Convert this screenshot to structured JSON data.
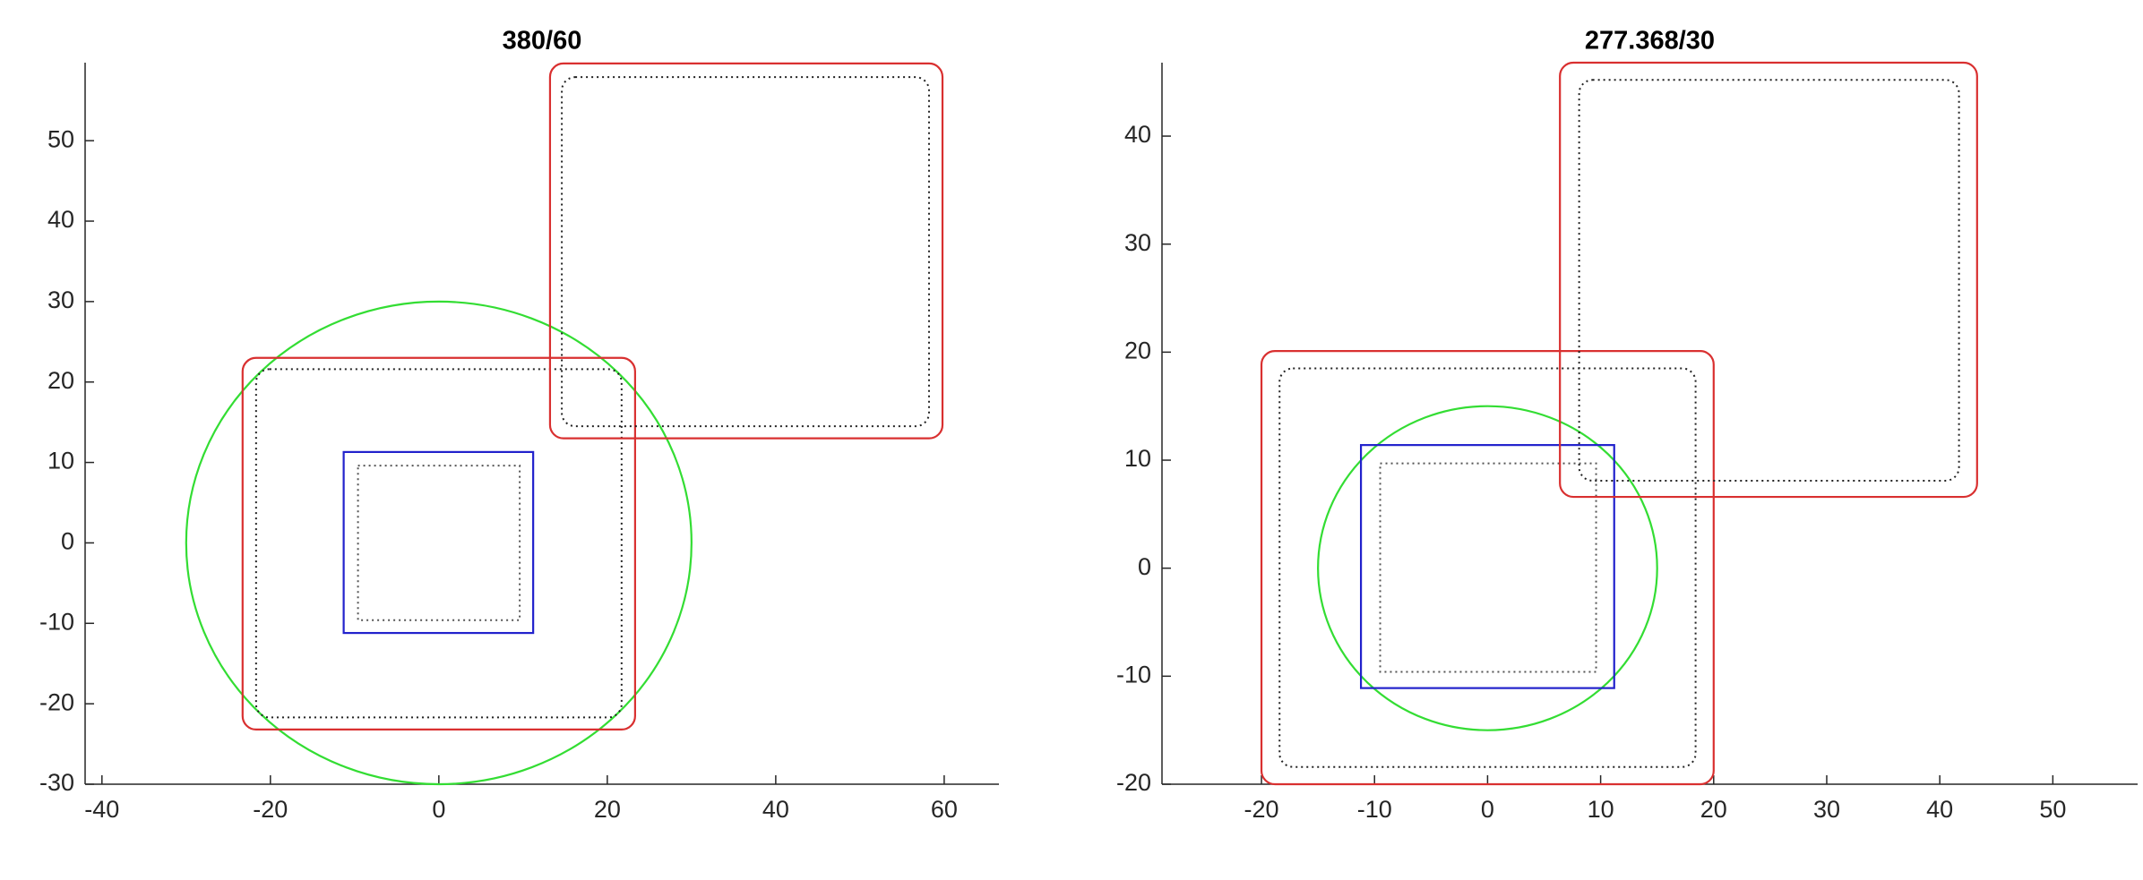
{
  "chart_data": [
    {
      "type": "shapes",
      "title": "380/60",
      "xlim": [
        -42,
        66.5
      ],
      "ylim": [
        -30,
        59.7
      ],
      "xticks": [
        -40,
        -20,
        0,
        20,
        40,
        60
      ],
      "yticks": [
        -30,
        -20,
        -10,
        0,
        10,
        20,
        30,
        40,
        50
      ],
      "shapes": [
        {
          "kind": "circle",
          "cx": 0,
          "cy": 0,
          "r": 30,
          "color": "#33dd33",
          "dash": "solid"
        },
        {
          "kind": "rect",
          "x": [
            -11.3,
            11.2
          ],
          "y": [
            -11.2,
            11.3
          ],
          "color": "#2222cc",
          "dash": "solid",
          "rounded": false
        },
        {
          "kind": "rect",
          "x": [
            -9.6,
            9.6
          ],
          "y": [
            -9.6,
            9.6
          ],
          "color": "#555555",
          "dash": "dotted",
          "rounded": false
        },
        {
          "kind": "rect",
          "x": [
            -23.3,
            23.3
          ],
          "y": [
            -23.2,
            23
          ],
          "color": "#d93030",
          "dash": "solid",
          "rounded": true
        },
        {
          "kind": "rect",
          "x": [
            -21.7,
            21.7
          ],
          "y": [
            -21.7,
            21.6
          ],
          "color": "#222222",
          "dash": "dotted",
          "rounded": true
        },
        {
          "kind": "rect",
          "x": [
            13.2,
            59.8
          ],
          "y": [
            13,
            59.6
          ],
          "color": "#d93030",
          "dash": "solid",
          "rounded": true
        },
        {
          "kind": "rect",
          "x": [
            14.6,
            58.2
          ],
          "y": [
            14.5,
            57.9
          ],
          "color": "#222222",
          "dash": "dotted",
          "rounded": true
        }
      ]
    },
    {
      "type": "shapes",
      "title": "277.368/30",
      "xlim": [
        -28.8,
        57.5
      ],
      "ylim": [
        -20,
        46.8
      ],
      "xticks": [
        -20,
        -10,
        0,
        10,
        20,
        30,
        40,
        50
      ],
      "yticks": [
        -20,
        -10,
        0,
        10,
        20,
        30,
        40
      ],
      "shapes": [
        {
          "kind": "circle",
          "cx": 0,
          "cy": 0,
          "r": 15,
          "color": "#33dd33",
          "dash": "solid"
        },
        {
          "kind": "rect",
          "x": [
            -11.2,
            11.2
          ],
          "y": [
            -11.1,
            11.4
          ],
          "color": "#2222cc",
          "dash": "solid",
          "rounded": false
        },
        {
          "kind": "rect",
          "x": [
            -9.5,
            9.6
          ],
          "y": [
            -9.6,
            9.7
          ],
          "color": "#555555",
          "dash": "dotted",
          "rounded": false
        },
        {
          "kind": "rect",
          "x": [
            -20,
            20
          ],
          "y": [
            -20,
            20.1
          ],
          "color": "#d93030",
          "dash": "solid",
          "rounded": true
        },
        {
          "kind": "rect",
          "x": [
            -18.4,
            18.4
          ],
          "y": [
            -18.4,
            18.5
          ],
          "color": "#222222",
          "dash": "dotted",
          "rounded": true
        },
        {
          "kind": "rect",
          "x": [
            6.4,
            43.3
          ],
          "y": [
            6.6,
            46.8
          ],
          "color": "#d93030",
          "dash": "solid",
          "rounded": true
        },
        {
          "kind": "rect",
          "x": [
            8.1,
            41.7
          ],
          "y": [
            8.1,
            45.2
          ],
          "color": "#222222",
          "dash": "dotted",
          "rounded": true
        }
      ]
    }
  ]
}
